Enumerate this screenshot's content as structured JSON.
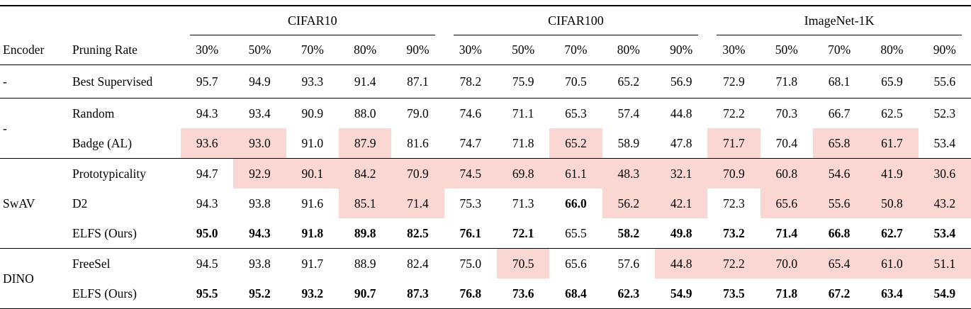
{
  "table": {
    "encoder_header": "Encoder",
    "method_header": "Pruning Rate",
    "col_groups": [
      {
        "label": "CIFAR10"
      },
      {
        "label": "CIFAR100"
      },
      {
        "label": "ImageNet-1K"
      }
    ],
    "rate_headers": [
      "30%",
      "50%",
      "70%",
      "80%",
      "90%"
    ],
    "highlight_color": "#fbd7d3",
    "groups": [
      {
        "encoder": "-",
        "rows": [
          {
            "method": "Best Supervised",
            "values": [
              "95.7",
              "94.9",
              "93.3",
              "91.4",
              "87.1",
              "78.2",
              "75.9",
              "70.5",
              "65.2",
              "56.9",
              "72.9",
              "71.8",
              "68.1",
              "65.9",
              "55.6"
            ],
            "pink": [],
            "bold": []
          }
        ]
      },
      {
        "encoder": "-",
        "rows": [
          {
            "method": "Random",
            "values": [
              "94.3",
              "93.4",
              "90.9",
              "88.0",
              "79.0",
              "74.6",
              "71.1",
              "65.3",
              "57.4",
              "44.8",
              "72.2",
              "70.3",
              "66.7",
              "62.5",
              "52.3"
            ],
            "pink": [],
            "bold": []
          },
          {
            "method": "Badge (AL)",
            "values": [
              "93.6",
              "93.0",
              "91.0",
              "87.9",
              "81.6",
              "74.7",
              "71.8",
              "65.2",
              "58.9",
              "47.8",
              "71.7",
              "70.4",
              "65.8",
              "61.7",
              "53.4"
            ],
            "pink": [
              0,
              1,
              3,
              7,
              10,
              12,
              13
            ],
            "bold": []
          }
        ]
      },
      {
        "encoder": "SwAV",
        "rows": [
          {
            "method": "Prototypicality",
            "values": [
              "94.7",
              "92.9",
              "90.1",
              "84.2",
              "70.9",
              "74.5",
              "69.8",
              "61.1",
              "48.3",
              "32.1",
              "70.9",
              "60.8",
              "54.6",
              "41.9",
              "30.6"
            ],
            "pink": [
              1,
              2,
              3,
              4,
              5,
              6,
              7,
              8,
              9,
              10,
              11,
              12,
              13,
              14
            ],
            "bold": []
          },
          {
            "method": "D2",
            "values": [
              "94.3",
              "93.8",
              "91.6",
              "85.1",
              "71.4",
              "75.3",
              "71.3",
              "66.0",
              "56.2",
              "42.1",
              "72.3",
              "65.6",
              "55.6",
              "50.8",
              "43.2"
            ],
            "pink": [
              3,
              4,
              8,
              9,
              11,
              12,
              13,
              14
            ],
            "bold": [
              7
            ]
          },
          {
            "method": "ELFS (Ours)",
            "values": [
              "95.0",
              "94.3",
              "91.8",
              "89.8",
              "82.5",
              "76.1",
              "72.1",
              "65.5",
              "58.2",
              "49.8",
              "73.2",
              "71.4",
              "66.8",
              "62.7",
              "53.4"
            ],
            "pink": [],
            "bold": [
              0,
              1,
              2,
              3,
              4,
              5,
              6,
              8,
              9,
              10,
              11,
              12,
              13,
              14
            ]
          }
        ]
      },
      {
        "encoder": "DINO",
        "rows": [
          {
            "method": "FreeSel",
            "values": [
              "94.5",
              "93.8",
              "91.7",
              "88.9",
              "82.4",
              "75.0",
              "70.5",
              "65.6",
              "57.6",
              "44.8",
              "72.2",
              "70.0",
              "65.4",
              "61.0",
              "51.1"
            ],
            "pink": [
              6,
              9,
              10,
              11,
              12,
              13,
              14
            ],
            "bold": []
          },
          {
            "method": "ELFS (Ours)",
            "values": [
              "95.5",
              "95.2",
              "93.2",
              "90.7",
              "87.3",
              "76.8",
              "73.6",
              "68.4",
              "62.3",
              "54.9",
              "73.5",
              "71.8",
              "67.2",
              "63.4",
              "54.9"
            ],
            "pink": [],
            "bold": [
              0,
              1,
              2,
              3,
              4,
              5,
              6,
              7,
              8,
              9,
              10,
              11,
              12,
              13,
              14
            ]
          }
        ]
      }
    ]
  }
}
